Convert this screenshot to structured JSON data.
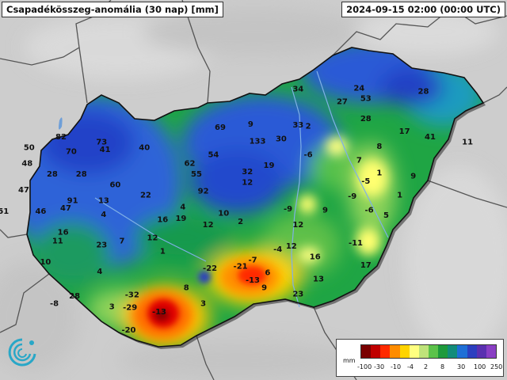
{
  "header": {
    "title": "Csapadékösszeg-anomália (30 nap) [mm]",
    "datetime": "2024-09-15 02:00 (00:00 UTC)"
  },
  "legend": {
    "unit": "mm",
    "colors": [
      "#7a0000",
      "#c00000",
      "#ff2a00",
      "#ff8c00",
      "#ffd400",
      "#ffff80",
      "#bfe37a",
      "#5cc24a",
      "#1e9a3c",
      "#128c7a",
      "#1f6fd6",
      "#2c3fbf",
      "#5a30b0",
      "#8a3fc4"
    ],
    "ticks": [
      "-100",
      "-30",
      "-10",
      "-4",
      "2",
      "8",
      "30",
      "100",
      "250"
    ]
  },
  "map": {
    "values": [
      {
        "label": "82",
        "lon": 16.55,
        "lat": 47.72
      },
      {
        "label": "73",
        "lon": 17.15,
        "lat": 47.67
      },
      {
        "label": "41",
        "lon": 17.2,
        "lat": 47.6
      },
      {
        "label": "40",
        "lon": 17.78,
        "lat": 47.62
      },
      {
        "label": "70",
        "lon": 16.7,
        "lat": 47.58
      },
      {
        "label": "50",
        "lon": 16.08,
        "lat": 47.62
      },
      {
        "label": "48",
        "lon": 16.05,
        "lat": 47.47
      },
      {
        "label": "28",
        "lon": 16.42,
        "lat": 47.37
      },
      {
        "label": "28",
        "lon": 16.85,
        "lat": 47.37
      },
      {
        "label": "47",
        "lon": 16.0,
        "lat": 47.22
      },
      {
        "label": "60",
        "lon": 17.35,
        "lat": 47.27
      },
      {
        "label": "91",
        "lon": 16.72,
        "lat": 47.12
      },
      {
        "label": "47",
        "lon": 16.62,
        "lat": 47.05
      },
      {
        "label": "46",
        "lon": 16.25,
        "lat": 47.02
      },
      {
        "label": "51",
        "lon": 15.7,
        "lat": 47.02
      },
      {
        "label": "13",
        "lon": 17.18,
        "lat": 47.12
      },
      {
        "label": "22",
        "lon": 17.8,
        "lat": 47.17
      },
      {
        "label": "4",
        "lon": 17.18,
        "lat": 46.99
      },
      {
        "label": "16",
        "lon": 16.58,
        "lat": 46.82
      },
      {
        "label": "11",
        "lon": 16.5,
        "lat": 46.74
      },
      {
        "label": "7",
        "lon": 17.45,
        "lat": 46.74
      },
      {
        "label": "23",
        "lon": 17.15,
        "lat": 46.7
      },
      {
        "label": "10",
        "lon": 16.32,
        "lat": 46.54
      },
      {
        "label": "16",
        "lon": 18.05,
        "lat": 46.94
      },
      {
        "label": "12",
        "lon": 17.9,
        "lat": 46.77
      },
      {
        "label": "4",
        "lon": 18.35,
        "lat": 47.06
      },
      {
        "label": "19",
        "lon": 18.32,
        "lat": 46.95
      },
      {
        "label": "1",
        "lon": 18.05,
        "lat": 46.64
      },
      {
        "label": "4",
        "lon": 17.12,
        "lat": 46.45
      },
      {
        "label": "28",
        "lon": 16.75,
        "lat": 46.22
      },
      {
        "label": "-8",
        "lon": 16.45,
        "lat": 46.15
      },
      {
        "label": "3",
        "lon": 17.3,
        "lat": 46.12
      },
      {
        "label": "-32",
        "lon": 17.6,
        "lat": 46.23
      },
      {
        "label": "-29",
        "lon": 17.57,
        "lat": 46.11
      },
      {
        "label": "-13",
        "lon": 18.0,
        "lat": 46.07
      },
      {
        "label": "-20",
        "lon": 17.55,
        "lat": 45.9
      },
      {
        "label": "8",
        "lon": 18.4,
        "lat": 46.3
      },
      {
        "label": "3",
        "lon": 18.65,
        "lat": 46.15
      },
      {
        "label": "-22",
        "lon": 18.75,
        "lat": 46.48
      },
      {
        "label": "-21",
        "lon": 19.2,
        "lat": 46.5
      },
      {
        "label": "-7",
        "lon": 19.38,
        "lat": 46.56
      },
      {
        "label": "-13",
        "lon": 19.38,
        "lat": 46.37
      },
      {
        "label": "6",
        "lon": 19.6,
        "lat": 46.44
      },
      {
        "label": "9",
        "lon": 19.55,
        "lat": 46.3
      },
      {
        "label": "23",
        "lon": 20.05,
        "lat": 46.24
      },
      {
        "label": "13",
        "lon": 20.35,
        "lat": 46.38
      },
      {
        "label": "-4",
        "lon": 19.75,
        "lat": 46.66
      },
      {
        "label": "12",
        "lon": 18.72,
        "lat": 46.89
      },
      {
        "label": "10",
        "lon": 18.95,
        "lat": 47.0
      },
      {
        "label": "2",
        "lon": 19.2,
        "lat": 46.92
      },
      {
        "label": "12",
        "lon": 19.95,
        "lat": 46.69
      },
      {
        "label": "16",
        "lon": 20.3,
        "lat": 46.59
      },
      {
        "label": "12",
        "lon": 20.05,
        "lat": 46.89
      },
      {
        "label": "-11",
        "lon": 20.9,
        "lat": 46.72
      },
      {
        "label": "17",
        "lon": 21.05,
        "lat": 46.51
      },
      {
        "label": "69",
        "lon": 18.9,
        "lat": 47.81
      },
      {
        "label": "54",
        "lon": 18.8,
        "lat": 47.55
      },
      {
        "label": "62",
        "lon": 18.45,
        "lat": 47.47
      },
      {
        "label": "55",
        "lon": 18.55,
        "lat": 47.37
      },
      {
        "label": "92",
        "lon": 18.65,
        "lat": 47.21
      },
      {
        "label": "32",
        "lon": 19.3,
        "lat": 47.39
      },
      {
        "label": "12",
        "lon": 19.3,
        "lat": 47.29
      },
      {
        "label": "19",
        "lon": 19.62,
        "lat": 47.45
      },
      {
        "label": "133",
        "lon": 19.45,
        "lat": 47.68
      },
      {
        "label": "9",
        "lon": 19.35,
        "lat": 47.84
      },
      {
        "label": "30",
        "lon": 19.8,
        "lat": 47.7
      },
      {
        "label": "33",
        "lon": 20.05,
        "lat": 47.83
      },
      {
        "label": "2",
        "lon": 20.2,
        "lat": 47.82
      },
      {
        "label": "34",
        "lon": 20.05,
        "lat": 48.17
      },
      {
        "label": "24",
        "lon": 20.95,
        "lat": 48.18
      },
      {
        "label": "27",
        "lon": 20.7,
        "lat": 48.05
      },
      {
        "label": "53",
        "lon": 21.05,
        "lat": 48.08
      },
      {
        "label": "28",
        "lon": 21.05,
        "lat": 47.89
      },
      {
        "label": "28",
        "lon": 21.9,
        "lat": 48.15
      },
      {
        "label": "17",
        "lon": 21.62,
        "lat": 47.77
      },
      {
        "label": "41",
        "lon": 22.0,
        "lat": 47.72
      },
      {
        "label": "11",
        "lon": 22.55,
        "lat": 47.67
      },
      {
        "label": "8",
        "lon": 21.25,
        "lat": 47.63
      },
      {
        "label": "-6",
        "lon": 20.2,
        "lat": 47.55
      },
      {
        "label": "7",
        "lon": 20.95,
        "lat": 47.5
      },
      {
        "label": "1",
        "lon": 21.25,
        "lat": 47.38
      },
      {
        "label": "9",
        "lon": 21.75,
        "lat": 47.35
      },
      {
        "label": "-5",
        "lon": 21.05,
        "lat": 47.3
      },
      {
        "label": "-9",
        "lon": 20.85,
        "lat": 47.16
      },
      {
        "label": "1",
        "lon": 21.55,
        "lat": 47.17
      },
      {
        "label": "-9",
        "lon": 19.9,
        "lat": 47.04
      },
      {
        "label": "9",
        "lon": 20.45,
        "lat": 47.03
      },
      {
        "label": "-6",
        "lon": 21.1,
        "lat": 47.03
      },
      {
        "label": "5",
        "lon": 21.35,
        "lat": 46.98
      }
    ]
  }
}
